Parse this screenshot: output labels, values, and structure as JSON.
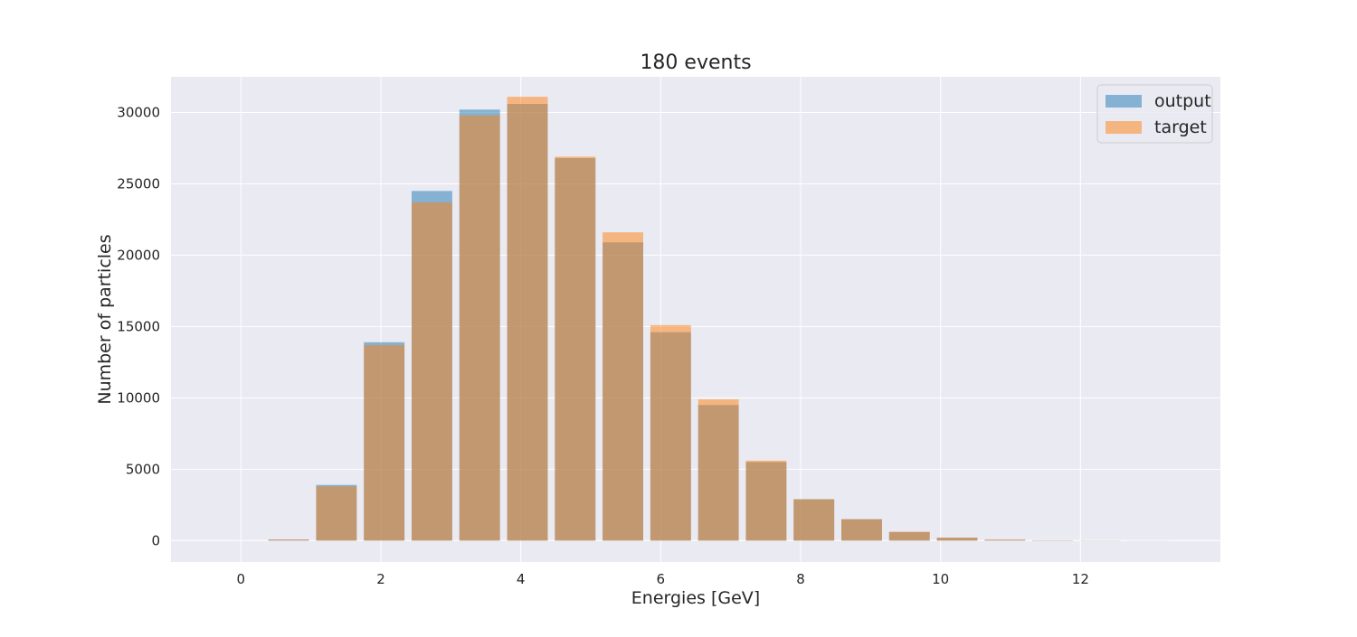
{
  "chart_data": {
    "type": "bar",
    "title": "180 events",
    "xlabel": "Energies [GeV]",
    "ylabel": "Number of particles",
    "xlim": [
      -1,
      14
    ],
    "ylim": [
      -1500,
      32500
    ],
    "xticks": [
      0,
      2,
      4,
      6,
      8,
      10,
      12
    ],
    "yticks": [
      0,
      5000,
      10000,
      15000,
      20000,
      25000,
      30000
    ],
    "bin_width": 0.6825,
    "bar_width_fraction": 0.85,
    "x": [
      0.6825,
      1.365,
      2.0475,
      2.73,
      3.4125,
      4.095,
      4.7775,
      5.46,
      6.1425,
      6.825,
      7.5075,
      8.19,
      8.8725,
      9.555,
      10.2375,
      10.92,
      11.6025,
      12.285,
      12.9675
    ],
    "series": [
      {
        "name": "output",
        "color": "#1f77b4",
        "values": [
          80,
          3900,
          13900,
          24500,
          30200,
          30600,
          26800,
          20900,
          14600,
          9500,
          5500,
          2900,
          1500,
          600,
          200,
          60,
          20,
          10,
          5
        ]
      },
      {
        "name": "target",
        "color": "#ff7f0e",
        "values": [
          70,
          3800,
          13700,
          23700,
          29800,
          31100,
          26900,
          21600,
          15100,
          9900,
          5600,
          2900,
          1500,
          620,
          210,
          70,
          20,
          10,
          5
        ]
      }
    ],
    "grid": true,
    "legend_position": "top-right",
    "bar_opacity": 0.5,
    "background": "#eaeaf2"
  }
}
